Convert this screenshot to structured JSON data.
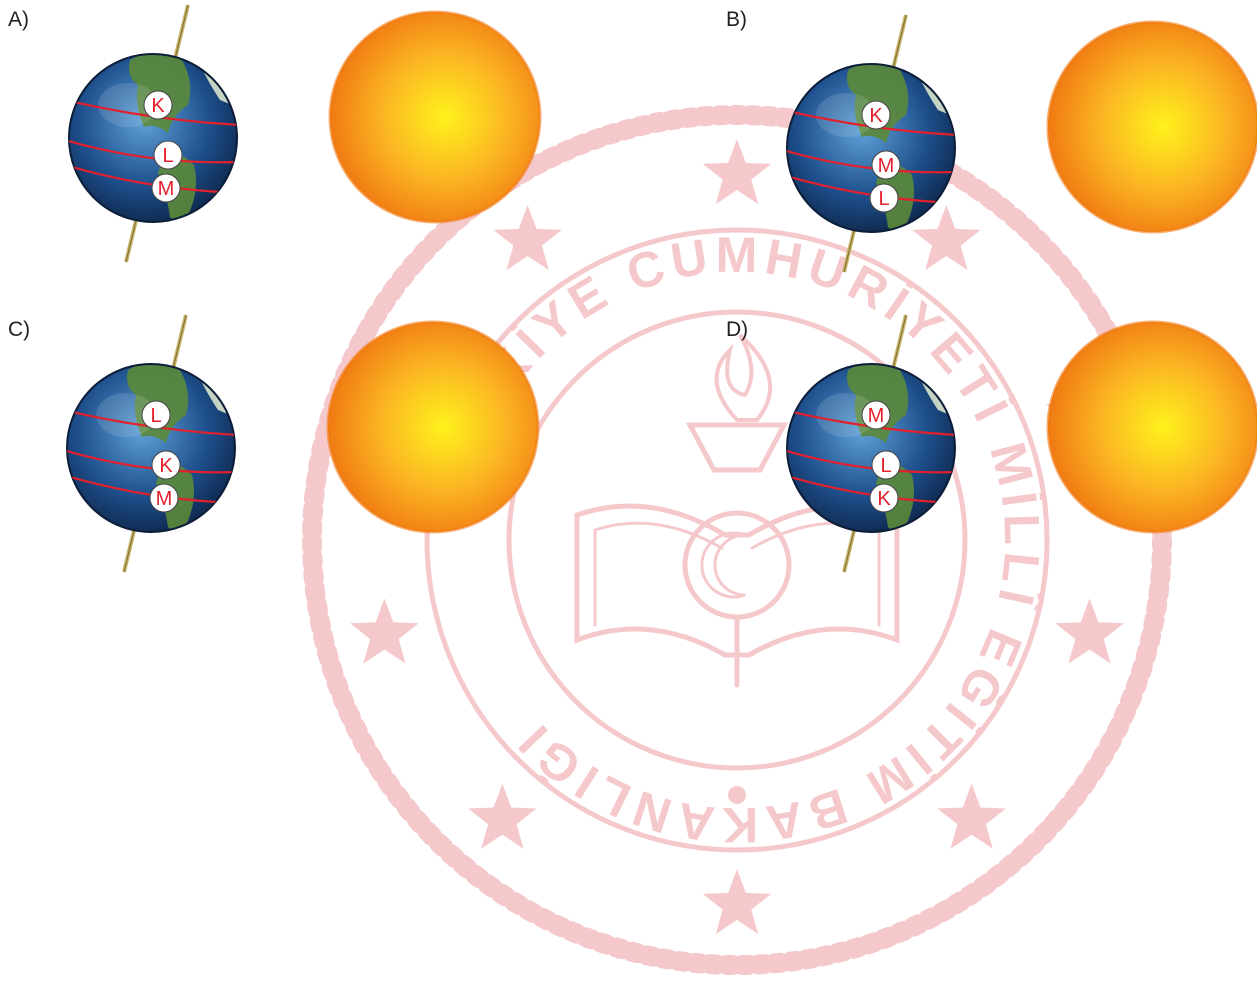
{
  "watermark": {
    "top_text": "TÜRKİYE CUMHURİYETİ MİLLÎ EĞİTİM BAKANLIĞI",
    "color": "#f5c9cc"
  },
  "colors": {
    "orbit_line": "#e3202c",
    "marker_text": "#e3202c",
    "marker_fill": "#ffffff",
    "axis": "#c9b46a",
    "sun_outer": "#f07a12",
    "sun_inner": "#fff21c",
    "earth_ocean": "#1d4f8c",
    "earth_land": "#5c8a3a"
  },
  "options": [
    {
      "label": "A)",
      "markers": [
        "K",
        "L",
        "M"
      ]
    },
    {
      "label": "B)",
      "markers": [
        "K",
        "M",
        "L"
      ]
    },
    {
      "label": "C)",
      "markers": [
        "L",
        "K",
        "M"
      ]
    },
    {
      "label": "D)",
      "markers": [
        "M",
        "L",
        "K"
      ]
    }
  ]
}
